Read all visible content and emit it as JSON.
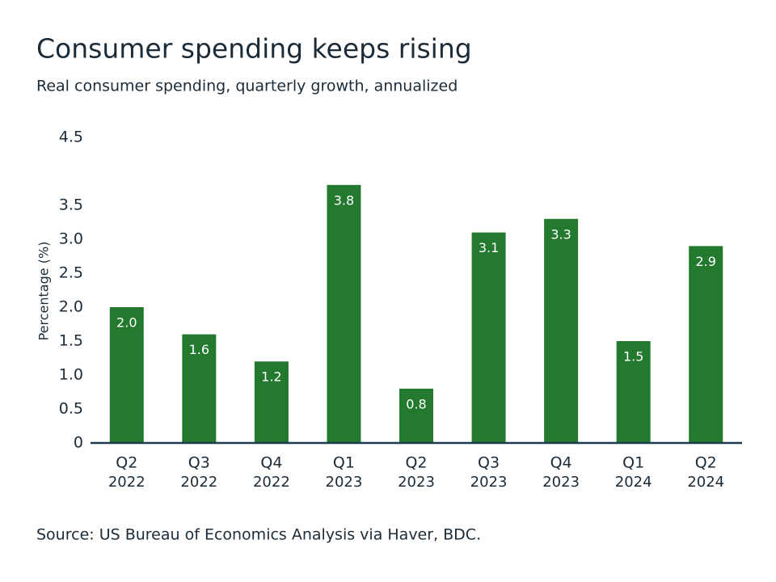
{
  "chart_data": {
    "type": "bar",
    "title": "Consumer spending keeps rising",
    "subtitle": "Real consumer spending, quarterly growth, annualized",
    "y_label": "Percentage (%)",
    "source": "Source: US Bureau of Economics Analysis via Haver, BDC.",
    "categories": [
      [
        "Q2",
        "2022"
      ],
      [
        "Q3",
        "2022"
      ],
      [
        "Q4",
        "2022"
      ],
      [
        "Q1",
        "2023"
      ],
      [
        "Q2",
        "2023"
      ],
      [
        "Q3",
        "2023"
      ],
      [
        "Q4",
        "2023"
      ],
      [
        "Q1",
        "2024"
      ],
      [
        "Q2",
        "2024"
      ]
    ],
    "values": [
      2.0,
      1.6,
      1.2,
      3.8,
      0.8,
      3.1,
      3.3,
      1.5,
      2.9
    ],
    "value_labels": [
      "2.0",
      "1.6",
      "1.2",
      "3.8",
      "0.8",
      "3.1",
      "3.3",
      "1.5",
      "2.9"
    ],
    "color": "#237a2f",
    "ylim": [
      0,
      4.5
    ],
    "yticks": [
      0,
      0.5,
      {
        "value": 1,
        "label": "1.0"
      },
      1.5,
      {
        "value": 2,
        "label": "2.0"
      },
      2.5,
      {
        "value": 3,
        "label": "3.0"
      },
      3.5,
      4.5
    ],
    "grid": false
  }
}
